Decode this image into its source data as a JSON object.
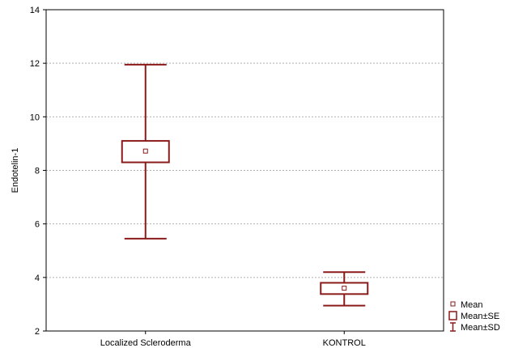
{
  "chart_data": {
    "type": "box",
    "ylabel": "Endotelin-1",
    "xlabel": "",
    "ylim": [
      2,
      14
    ],
    "yticks": [
      2,
      4,
      6,
      8,
      10,
      12,
      14
    ],
    "grid": true,
    "categories": [
      "Localized Scleroderma",
      "KONTROL"
    ],
    "groups": [
      {
        "category": "Localized Scleroderma",
        "mean": 8.72,
        "se_low": 8.3,
        "se_high": 9.1,
        "sd_low": 5.45,
        "sd_high": 11.95
      },
      {
        "category": "KONTROL",
        "mean": 3.6,
        "se_low": 3.38,
        "se_high": 3.8,
        "sd_low": 2.95,
        "sd_high": 4.2
      }
    ],
    "legend": {
      "placement": "bottom-right",
      "items": [
        {
          "key": "mean",
          "label": "Mean"
        },
        {
          "key": "se",
          "label": "Mean±SE"
        },
        {
          "key": "sd",
          "label": "Mean±SD"
        }
      ]
    },
    "colors": {
      "series": "#8b1a1a",
      "axis": "#000000",
      "grid": "#b0b0b0"
    }
  }
}
